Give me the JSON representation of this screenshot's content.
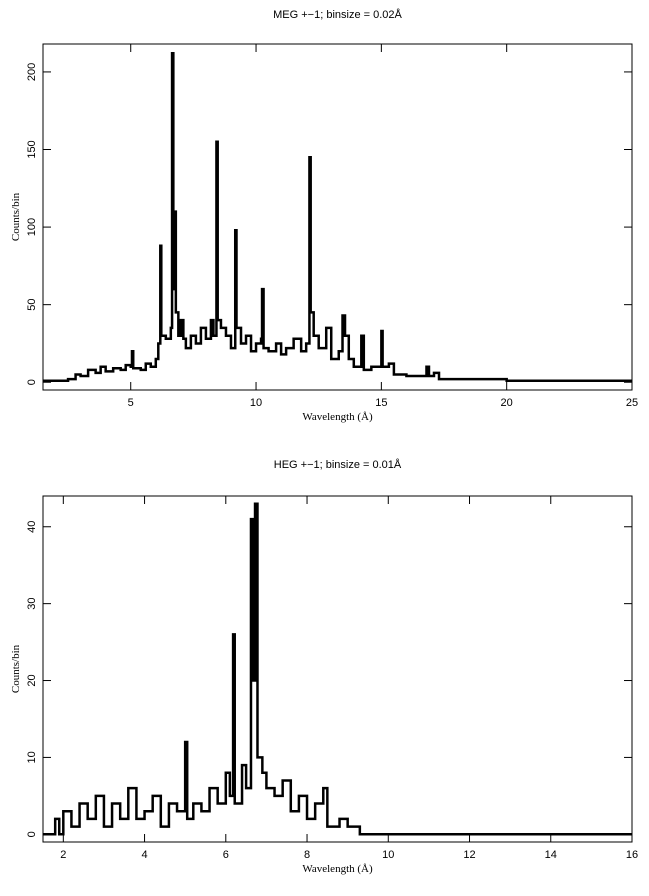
{
  "chart_data": [
    {
      "type": "line",
      "title": "MEG +−1; binsize = 0.02Å",
      "xlabel": "Wavelength (Å)",
      "ylabel": "Counts/bin",
      "xlim": [
        1.5,
        25
      ],
      "ylim": [
        -5,
        218
      ],
      "xticks": [
        5,
        10,
        15,
        20,
        25
      ],
      "yticks": [
        0,
        50,
        100,
        150,
        200
      ],
      "series": [
        {
          "name": "MEG",
          "color": "#000000",
          "x": [
            1.5,
            2,
            2.5,
            2.8,
            3,
            3.3,
            3.6,
            3.8,
            4,
            4.3,
            4.6,
            4.8,
            5,
            5.05,
            5.1,
            5.4,
            5.6,
            5.8,
            6.0,
            6.1,
            6.18,
            6.22,
            6.4,
            6.6,
            6.65,
            6.7,
            6.74,
            6.8,
            6.9,
            7.0,
            7.1,
            7.2,
            7.4,
            7.6,
            7.8,
            8.0,
            8.2,
            8.3,
            8.42,
            8.47,
            8.6,
            8.8,
            9.0,
            9.17,
            9.22,
            9.4,
            9.6,
            9.8,
            10.0,
            10.2,
            10.24,
            10.3,
            10.5,
            10.8,
            11.0,
            11.2,
            11.5,
            11.8,
            12.0,
            12.13,
            12.18,
            12.3,
            12.5,
            12.8,
            13.0,
            13.3,
            13.45,
            13.55,
            13.7,
            13.9,
            14.2,
            14.3,
            14.6,
            15.0,
            15.05,
            15.3,
            15.5,
            16.0,
            16.8,
            16.9,
            17.1,
            17.3,
            18,
            19,
            20,
            25
          ],
          "values": [
            1,
            1,
            2,
            5,
            4,
            8,
            6,
            10,
            7,
            9,
            8,
            11,
            10,
            20,
            9,
            8,
            12,
            10,
            15,
            25,
            88,
            30,
            28,
            35,
            212,
            60,
            110,
            45,
            30,
            40,
            28,
            22,
            30,
            25,
            35,
            28,
            40,
            30,
            155,
            40,
            35,
            30,
            22,
            98,
            35,
            25,
            30,
            20,
            25,
            28,
            60,
            22,
            20,
            25,
            18,
            22,
            28,
            20,
            25,
            145,
            45,
            30,
            22,
            35,
            15,
            20,
            43,
            30,
            15,
            10,
            30,
            8,
            10,
            33,
            10,
            12,
            5,
            4,
            10,
            4,
            6,
            2,
            2,
            2,
            1,
            1
          ]
        }
      ]
    },
    {
      "type": "line",
      "title": "HEG +−1; binsize = 0.01Å",
      "xlabel": "Wavelength (Å)",
      "ylabel": "Counts/bin",
      "xlim": [
        1.5,
        16
      ],
      "ylim": [
        -1,
        44
      ],
      "xticks": [
        2,
        4,
        6,
        8,
        10,
        12,
        14,
        16
      ],
      "yticks": [
        0,
        10,
        20,
        30,
        40
      ],
      "series": [
        {
          "name": "HEG",
          "color": "#000000",
          "x": [
            1.5,
            1.8,
            1.9,
            2.0,
            2.2,
            2.4,
            2.6,
            2.8,
            3.0,
            3.2,
            3.4,
            3.6,
            3.8,
            4.0,
            4.2,
            4.4,
            4.6,
            4.8,
            5.0,
            5.05,
            5.2,
            5.4,
            5.6,
            5.8,
            6.0,
            6.1,
            6.18,
            6.22,
            6.4,
            6.5,
            6.62,
            6.68,
            6.72,
            6.78,
            6.9,
            7.0,
            7.2,
            7.4,
            7.6,
            7.8,
            8.0,
            8.2,
            8.4,
            8.5,
            8.8,
            9.0,
            9.3,
            16
          ],
          "values": [
            0,
            2,
            0,
            3,
            1,
            4,
            2,
            5,
            1,
            4,
            2,
            6,
            2,
            3,
            5,
            1,
            4,
            3,
            12,
            2,
            4,
            3,
            6,
            4,
            8,
            5,
            26,
            4,
            9,
            6,
            41,
            20,
            43,
            10,
            8,
            6,
            5,
            7,
            3,
            5,
            2,
            4,
            6,
            1,
            2,
            1,
            0,
            0
          ]
        }
      ]
    }
  ]
}
